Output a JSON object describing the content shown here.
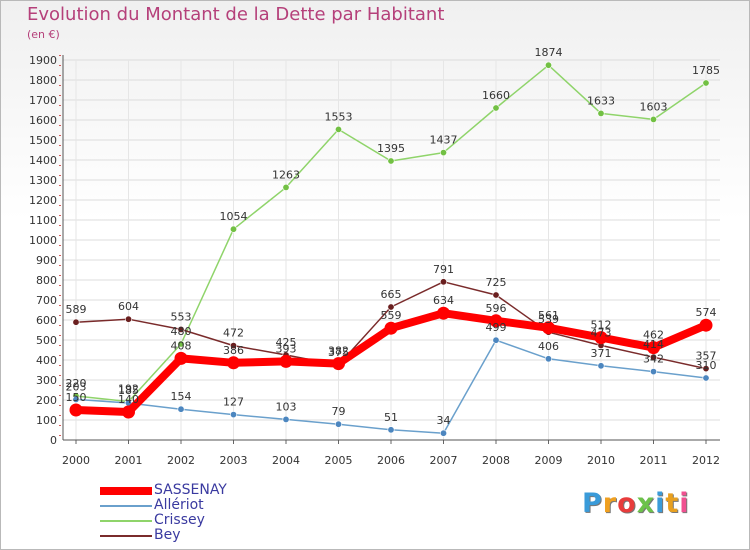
{
  "header": {
    "title": "Evolution du Montant de la Dette par Habitant",
    "unit": "(en €)"
  },
  "logo": {
    "text": "Proxiti",
    "colors": [
      "#3a9bd9",
      "#f0a020",
      "#e83c3c",
      "#6cc24a",
      "#3a9bd9",
      "#e8a020",
      "#f05090"
    ]
  },
  "chart_data": {
    "type": "line",
    "categories": [
      "2000",
      "2001",
      "2002",
      "2003",
      "2004",
      "2005",
      "2006",
      "2007",
      "2008",
      "2009",
      "2010",
      "2011",
      "2012"
    ],
    "ylim": [
      0,
      1900
    ],
    "yticks": [
      0,
      100,
      200,
      300,
      400,
      500,
      600,
      700,
      800,
      900,
      1000,
      1100,
      1200,
      1300,
      1400,
      1500,
      1600,
      1700,
      1800,
      1900
    ],
    "grid": true,
    "legend": "bottom-left",
    "series": [
      {
        "name": "Crissey",
        "color": "#8fd46a",
        "marker": "#72c043",
        "values": [
          220,
          192,
          480,
          1054,
          1263,
          1553,
          1395,
          1437,
          1660,
          1874,
          1633,
          1603,
          1785
        ]
      },
      {
        "name": "Allériot",
        "color": "#6aa0cc",
        "marker": "#4c86bf",
        "values": [
          203,
          185,
          154,
          127,
          103,
          79,
          51,
          34,
          499,
          406,
          371,
          342,
          310
        ]
      },
      {
        "name": "Bey",
        "color": "#7a2b2b",
        "marker": "#6a1f1f",
        "values": [
          589,
          604,
          553,
          472,
          425,
          375,
          665,
          791,
          725,
          539,
          473,
          414,
          357
        ]
      },
      {
        "name": "SASSENAY",
        "color": "#ff0000",
        "marker": "#ff0000",
        "values": [
          150,
          140,
          408,
          386,
          393,
          382,
          559,
          634,
          596,
          561,
          512,
          462,
          574
        ]
      }
    ]
  }
}
